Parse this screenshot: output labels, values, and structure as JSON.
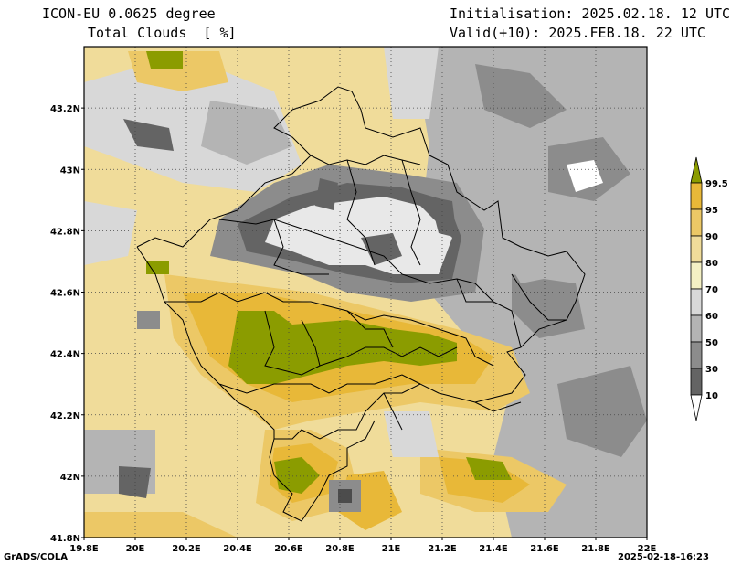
{
  "header": {
    "model": "ICON-EU 0.0625 degree",
    "variable": "Total Clouds  [ %]",
    "init": "Initialisation: 2025.02.18. 12 UTC",
    "valid": "Valid(+10): 2025.FEB.18. 22 UTC"
  },
  "map": {
    "lat_labels": [
      "43.2N",
      "43N",
      "42.8N",
      "42.6N",
      "42.4N",
      "42.2N",
      "42N",
      "41.8N"
    ],
    "lon_labels": [
      "19.8E",
      "20E",
      "20.2E",
      "20.4E",
      "20.6E",
      "20.8E",
      "21E",
      "21.2E",
      "21.4E",
      "21.6E",
      "21.8E",
      "22E"
    ],
    "lon_range": [
      19.8,
      22.0
    ],
    "lat_range": [
      41.8,
      43.4
    ]
  },
  "colorbar": {
    "levels": [
      "99.5",
      "95",
      "90",
      "80",
      "70",
      "60",
      "50",
      "30",
      "10"
    ],
    "colors": [
      "#8b9c00",
      "#e8b838",
      "#ecc866",
      "#f0dc9a",
      "#f4f0c4",
      "#d8d8d8",
      "#b4b4b4",
      "#8c8c8c",
      "#646464"
    ]
  },
  "footer": {
    "left": "GrADS/COLA",
    "right": "2025-02-18-16:23"
  }
}
